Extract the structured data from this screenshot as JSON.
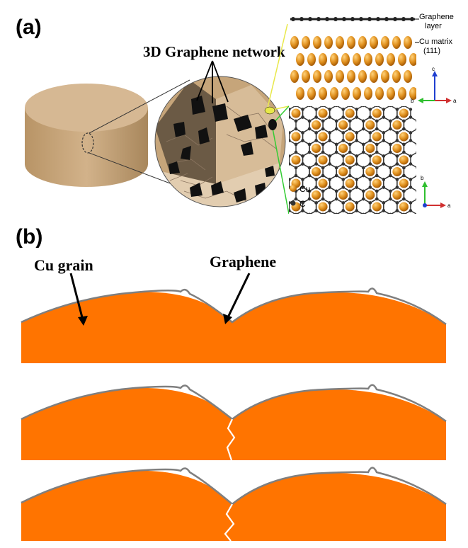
{
  "panel_a": {
    "label": "(a)",
    "network_label": "3D Graphene network",
    "graphene_layer_label": "Graphene layer",
    "graphene_layer_label_line1": "Graphene",
    "graphene_layer_label_line2": "layer",
    "cu_matrix_label": "Cu matrix (111)",
    "cu_matrix_label_line1": "Cu matrix",
    "cu_matrix_label_line2": "(111)",
    "legend_cu": "Cu",
    "legend_c": "C",
    "axis_c": "c",
    "axis_b": "b",
    "axis_a": "a",
    "colors": {
      "cylinder": "#c8a67e",
      "cu_atom": "#d98a1e",
      "carbon": "#333333",
      "pointer_green": "#33cc33",
      "pointer_yellow": "#e8e84a"
    }
  },
  "panel_b": {
    "label": "(b)",
    "cu_grain_label": "Cu grain",
    "graphene_label": "Graphene",
    "stages": 3,
    "colors": {
      "grain": "#ff7400",
      "graphene": "#7f7f7f",
      "crack": "#ffffff"
    }
  }
}
